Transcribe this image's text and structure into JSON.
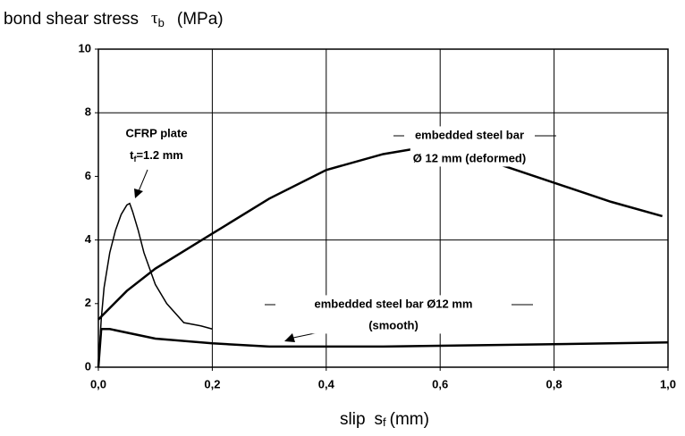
{
  "chart_data": {
    "type": "line",
    "ylabel": {
      "text": "bond shear stress",
      "symbol": "τ",
      "sub": "b",
      "unit": "(MPa)"
    },
    "xlabel": {
      "text": "slip",
      "symbol": "s",
      "sub": "f",
      "unit": "(mm)"
    },
    "xlim": [
      0,
      1
    ],
    "ylim": [
      0,
      10
    ],
    "xticks": [
      {
        "value": 0,
        "label": "0,0"
      },
      {
        "value": 0.2,
        "label": "0,2"
      },
      {
        "value": 0.4,
        "label": "0,4"
      },
      {
        "value": 0.6,
        "label": "0,6"
      },
      {
        "value": 0.8,
        "label": "0,8"
      },
      {
        "value": 1,
        "label": "1,0"
      }
    ],
    "yticks": [
      0,
      2,
      4,
      6,
      8,
      10
    ],
    "grid": true,
    "series": [
      {
        "color": "#000000",
        "x": [
          0,
          0.005,
          0.01,
          0.02,
          0.03,
          0.04,
          0.05,
          0.055,
          0.06,
          0.07,
          0.08,
          0.1,
          0.12,
          0.15,
          0.18,
          0.2
        ],
        "values": [
          0,
          1.5,
          2.5,
          3.6,
          4.3,
          4.8,
          5.1,
          5.15,
          4.9,
          4.3,
          3.6,
          2.6,
          2.0,
          1.4,
          1.3,
          1.2
        ]
      },
      {
        "color": "#000000",
        "x": [
          0,
          0.05,
          0.1,
          0.2,
          0.3,
          0.4,
          0.5,
          0.55,
          0.6,
          0.65,
          0.7,
          0.8,
          0.9,
          0.99
        ],
        "values": [
          1.5,
          2.4,
          3.1,
          4.2,
          5.3,
          6.2,
          6.7,
          6.85,
          6.85,
          6.7,
          6.4,
          5.8,
          5.2,
          4.75
        ]
      },
      {
        "color": "#000000",
        "x": [
          0,
          0.005,
          0.02,
          0.1,
          0.2,
          0.3,
          0.5,
          0.7,
          0.9,
          1.0
        ],
        "values": [
          0,
          1.2,
          1.2,
          0.9,
          0.75,
          0.65,
          0.65,
          0.7,
          0.75,
          0.78
        ]
      }
    ],
    "annotations": [
      {
        "line1": "CFRP plate",
        "line2": {
          "symbol": "t",
          "sub": "f",
          "text": "=1.2 mm"
        }
      },
      {
        "line1": "embedded steel bar",
        "line2": "Ø 12 mm (deformed)"
      },
      {
        "line1": "embedded steel bar  Ø12 mm",
        "line2": "(smooth)"
      }
    ]
  }
}
